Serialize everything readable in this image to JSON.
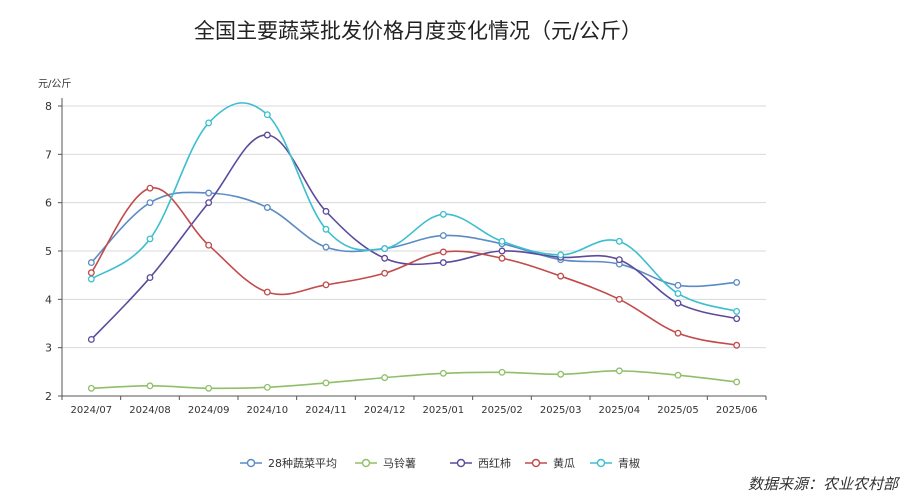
{
  "chart_data": {
    "type": "line",
    "title": "全国主要蔬菜批发价格月度变化情况（元/公斤）",
    "ylabel": "元/公斤",
    "xlabel": "",
    "ylim": [
      2,
      8
    ],
    "yticks": [
      2,
      3,
      4,
      5,
      6,
      7,
      8
    ],
    "categories": [
      "2024/07",
      "2024/08",
      "2024/09",
      "2024/10",
      "2024/11",
      "2024/12",
      "2025/01",
      "2025/02",
      "2025/03",
      "2025/04",
      "2025/05",
      "2025/06"
    ],
    "grid": true,
    "legend_position": "bottom",
    "series": [
      {
        "name": "28种蔬菜平均",
        "color": "#5b8bc4",
        "values": [
          4.76,
          6.0,
          6.2,
          5.9,
          5.08,
          5.05,
          5.32,
          5.15,
          4.82,
          4.73,
          4.29,
          4.35
        ]
      },
      {
        "name": "马铃薯",
        "color": "#8fbf6a",
        "values": [
          2.16,
          2.21,
          2.16,
          2.18,
          2.27,
          2.38,
          2.47,
          2.49,
          2.45,
          2.52,
          2.43,
          2.29
        ]
      },
      {
        "name": "西红柿",
        "color": "#5c4a9c",
        "values": [
          3.17,
          4.45,
          6.0,
          7.4,
          5.82,
          4.85,
          4.76,
          5.0,
          4.87,
          4.82,
          3.92,
          3.6
        ]
      },
      {
        "name": "黄瓜",
        "color": "#c24b4b",
        "values": [
          4.55,
          6.3,
          5.12,
          4.15,
          4.3,
          4.54,
          4.98,
          4.85,
          4.48,
          4.0,
          3.3,
          3.05
        ]
      },
      {
        "name": "青椒",
        "color": "#3bbfcf",
        "values": [
          4.42,
          5.25,
          7.65,
          7.82,
          5.45,
          5.05,
          5.76,
          5.2,
          4.92,
          5.2,
          4.12,
          3.75
        ]
      }
    ]
  },
  "source_text": "数据来源：农业农村部"
}
